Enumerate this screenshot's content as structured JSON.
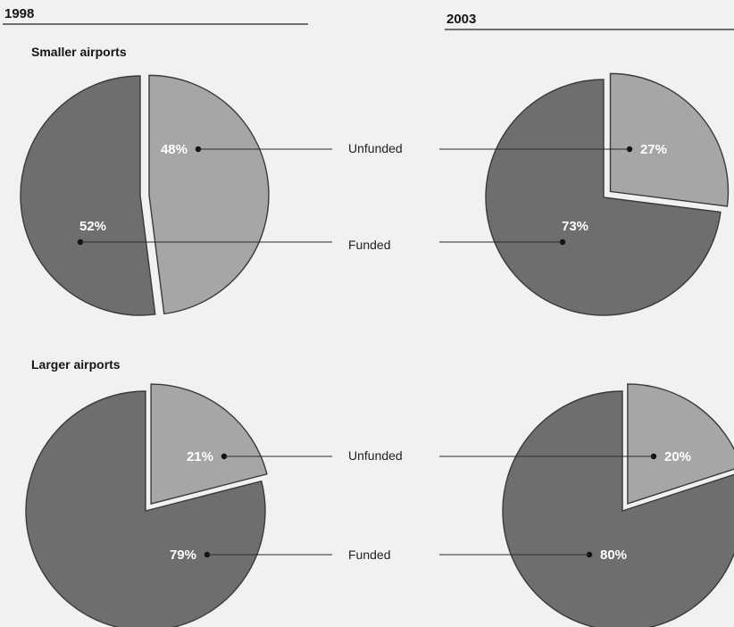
{
  "chart_data": {
    "type": "pie",
    "column_headers": [
      "1998",
      "2003"
    ],
    "categories": [
      "Unfunded",
      "Funded"
    ],
    "colors": {
      "Unfunded": "#a6a6a6",
      "Funded": "#6e6e6e"
    },
    "panels": [
      {
        "row": "Smaller airports",
        "year": "1998",
        "slices": [
          {
            "name": "Unfunded",
            "value": 48,
            "label": "48%",
            "exploded": true
          },
          {
            "name": "Funded",
            "value": 52,
            "label": "52%",
            "exploded": false
          }
        ]
      },
      {
        "row": "Smaller airports",
        "year": "2003",
        "slices": [
          {
            "name": "Unfunded",
            "value": 27,
            "label": "27%",
            "exploded": true
          },
          {
            "name": "Funded",
            "value": 73,
            "label": "73%",
            "exploded": false
          }
        ]
      },
      {
        "row": "Larger airports",
        "year": "1998",
        "slices": [
          {
            "name": "Unfunded",
            "value": 21,
            "label": "21%",
            "exploded": true
          },
          {
            "name": "Funded",
            "value": 79,
            "label": "79%",
            "exploded": false
          }
        ]
      },
      {
        "row": "Larger airports",
        "year": "2003",
        "slices": [
          {
            "name": "Unfunded",
            "value": 20,
            "label": "20%",
            "exploded": true
          },
          {
            "name": "Funded",
            "value": 80,
            "label": "80%",
            "exploded": false
          }
        ]
      }
    ],
    "row_labels": [
      "Smaller airports",
      "Larger airports"
    ],
    "slice_labels": [
      "Unfunded",
      "Funded"
    ]
  }
}
